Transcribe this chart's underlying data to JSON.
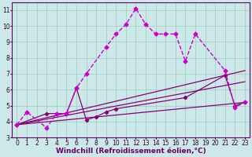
{
  "background_color": "#cce8e8",
  "plot_bg_color": "#cce8e8",
  "grid_color": "#99ccbb",
  "xlim": [
    -0.5,
    23.5
  ],
  "ylim": [
    3,
    11.5
  ],
  "xlabel": "Windchill (Refroidissement éolien,°C)",
  "xlabel_fontsize": 6.5,
  "xticks": [
    0,
    1,
    2,
    3,
    4,
    5,
    6,
    7,
    8,
    9,
    10,
    11,
    12,
    13,
    14,
    15,
    16,
    17,
    18,
    19,
    20,
    21,
    22,
    23
  ],
  "yticks": [
    3,
    4,
    5,
    6,
    7,
    8,
    9,
    10,
    11
  ],
  "tick_fontsize": 5.5,
  "series1_x": [
    0,
    1,
    3,
    4,
    5,
    6,
    7,
    9,
    10,
    11,
    12,
    13,
    14,
    15,
    16,
    17,
    18,
    21,
    22,
    23
  ],
  "series1_y": [
    3.8,
    4.6,
    3.6,
    4.5,
    4.5,
    6.1,
    7.0,
    8.7,
    9.5,
    10.1,
    11.1,
    10.1,
    9.5,
    9.5,
    9.5,
    7.8,
    9.5,
    7.2,
    4.9,
    5.2
  ],
  "series1_color": "#cc00cc",
  "series2_x": [
    0,
    3,
    4,
    5,
    6,
    7,
    8,
    9,
    10,
    17,
    21,
    22,
    23
  ],
  "series2_y": [
    3.8,
    4.5,
    4.5,
    4.5,
    6.1,
    4.1,
    4.3,
    4.6,
    4.8,
    5.5,
    6.9,
    5.0,
    5.2
  ],
  "series2_color": "#880077",
  "line3": {
    "x": [
      0,
      23
    ],
    "y": [
      3.8,
      7.2
    ]
  },
  "line4": {
    "x": [
      0,
      23
    ],
    "y": [
      3.8,
      6.5
    ]
  },
  "line5": {
    "x": [
      0,
      23
    ],
    "y": [
      3.8,
      5.2
    ]
  },
  "lines_color": "#880077",
  "spine_color": "#660066",
  "label_color": "#660066"
}
